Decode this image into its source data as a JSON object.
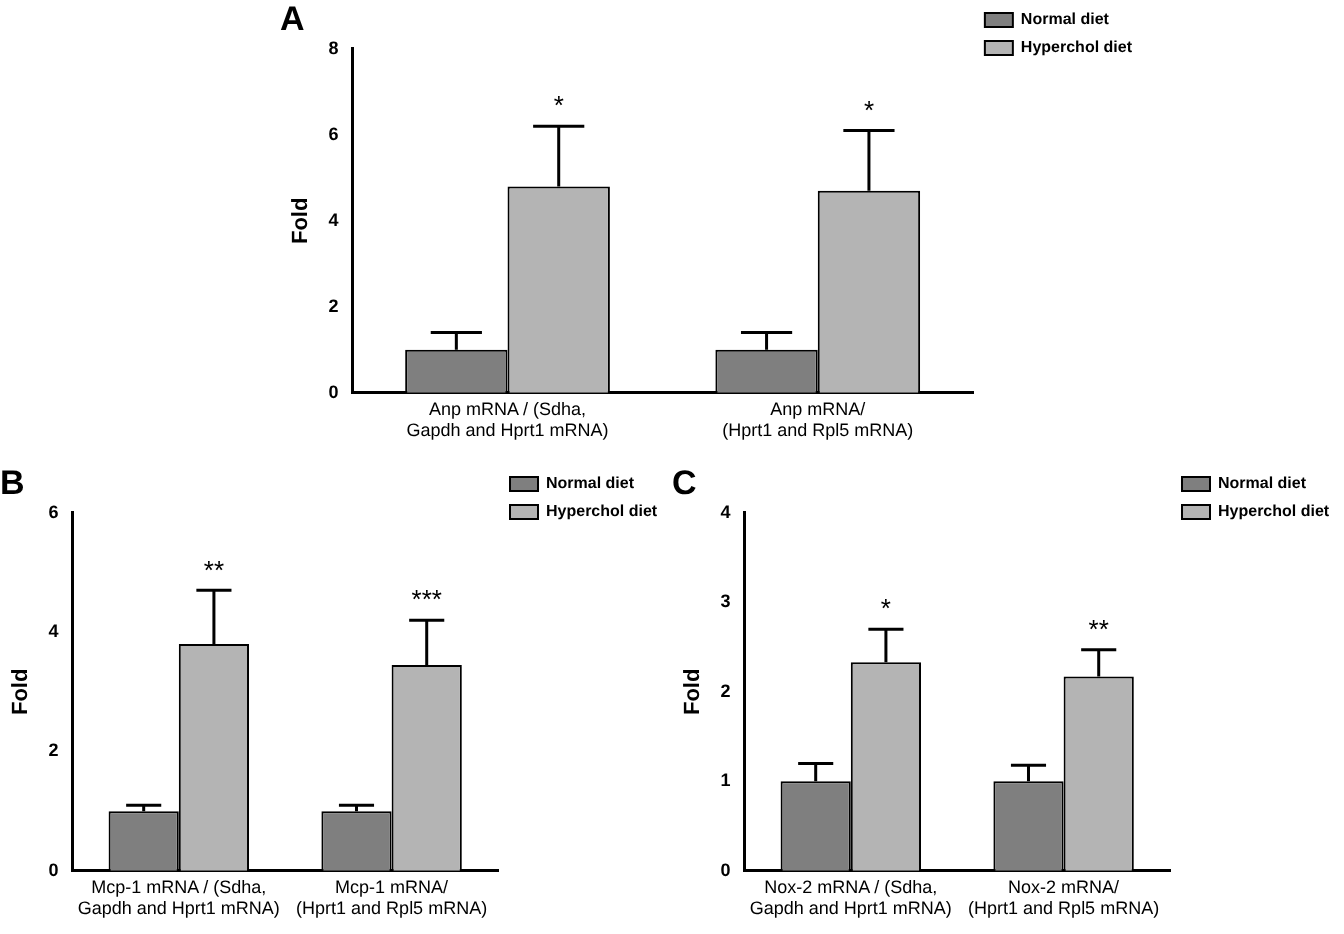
{
  "chart_data": [
    {
      "type": "bar",
      "title": "A",
      "ylabel": "Fold",
      "categories": [
        "Anp mRNA / (Sdha,\nGapdh and Hprt1 mRNA)",
        "Anp mRNA/\n(Hprt1 and Rpl5 mRNA)"
      ],
      "series": [
        {
          "name": "Normal diet",
          "color": "#7f7f7f",
          "values": [
            1,
            1
          ],
          "errors": [
            [
              1,
              1.4
            ],
            [
              1,
              1.4
            ]
          ]
        },
        {
          "name": "Hyperchol diet",
          "color": "#b4b4b4",
          "values": [
            4.8,
            4.7
          ],
          "errors": [
            [
              4.8,
              6.2
            ],
            [
              4.7,
              6.1
            ]
          ]
        }
      ],
      "ylim": [
        0,
        8
      ],
      "yticks": [
        0,
        2,
        4,
        6,
        8
      ],
      "grid": false,
      "legend": "top right",
      "annotations": [
        "*",
        "*"
      ]
    },
    {
      "type": "bar",
      "title": "B",
      "ylabel": "Fold",
      "categories": [
        "Mcp-1 mRNA / (Sdha,\nGapdh and Hprt1 mRNA)",
        "Mcp-1 mRNA/\n(Hprt1 and Rpl5 mRNA)"
      ],
      "series": [
        {
          "name": "Normal diet",
          "color": "#7f7f7f",
          "values": [
            1,
            1
          ],
          "errors": [
            [
              1,
              1.1
            ],
            [
              1,
              1.1
            ]
          ]
        },
        {
          "name": "Hyperchol diet",
          "color": "#b4b4b4",
          "values": [
            3.8,
            3.45
          ],
          "errors": [
            [
              3.8,
              4.7
            ],
            [
              3.45,
              4.2
            ]
          ]
        }
      ],
      "ylim": [
        0,
        6
      ],
      "yticks": [
        0,
        2,
        4,
        6
      ],
      "grid": false,
      "legend": "top right",
      "annotations": [
        "**",
        "***"
      ]
    },
    {
      "type": "bar",
      "title": "C",
      "ylabel": "Fold",
      "categories": [
        "Nox-2 mRNA / (Sdha,\nGapdh and Hprt1 mRNA)",
        "Nox-2 mRNA/\n(Hprt1 and Rpl5 mRNA)"
      ],
      "series": [
        {
          "name": "Normal diet",
          "color": "#7f7f7f",
          "values": [
            1,
            1
          ],
          "errors": [
            [
              1,
              1.2
            ],
            [
              1,
              1.18
            ]
          ]
        },
        {
          "name": "Hyperchol diet",
          "color": "#b4b4b4",
          "values": [
            2.33,
            2.17
          ],
          "errors": [
            [
              2.33,
              2.7
            ],
            [
              2.17,
              2.47
            ]
          ]
        }
      ],
      "ylim": [
        0,
        4
      ],
      "yticks": [
        0,
        1,
        2,
        3,
        4
      ],
      "grid": false,
      "legend": "top right",
      "annotations": [
        "*",
        "**"
      ]
    }
  ]
}
